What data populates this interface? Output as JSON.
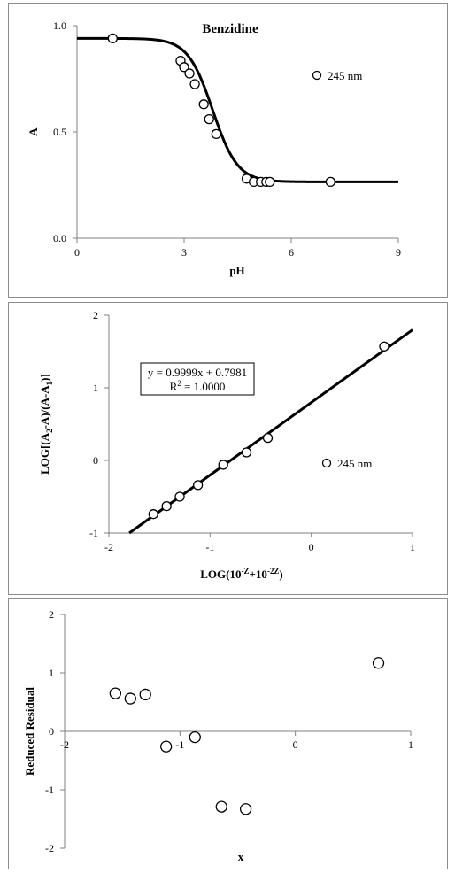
{
  "chart_data": [
    {
      "type": "scatter",
      "title": "Benzidine",
      "xlabel": "pH",
      "ylabel": "A",
      "xlim": [
        0,
        9
      ],
      "ylim": [
        0.0,
        1.0
      ],
      "xticks": [
        "0",
        "3",
        "6",
        "9"
      ],
      "yticks": [
        "0.0",
        "0.5",
        "1.0"
      ],
      "legend": "245 nm",
      "legend_position": "top-right",
      "grid": false,
      "series": [
        {
          "name": "245 nm",
          "x": [
            1.0,
            2.9,
            3.0,
            3.15,
            3.3,
            3.55,
            3.7,
            3.9,
            4.75,
            4.95,
            5.15,
            5.3,
            5.4,
            7.1
          ],
          "y": [
            0.94,
            0.835,
            0.805,
            0.775,
            0.725,
            0.63,
            0.56,
            0.49,
            0.28,
            0.265,
            0.265,
            0.265,
            0.265,
            0.265
          ]
        }
      ],
      "fit_curve": {
        "upper": 0.94,
        "lower": 0.265,
        "pKa": 3.8,
        "xrange": [
          0,
          9
        ]
      }
    },
    {
      "type": "scatter",
      "xlabel_parts": [
        "LOG(10",
        "-Z",
        "+10",
        "-2Z",
        ")"
      ],
      "ylabel_parts": [
        "LOG[(A",
        "2",
        "-A)/(A-A",
        "1",
        ")]"
      ],
      "xlim": [
        -2,
        1
      ],
      "ylim": [
        -1,
        2
      ],
      "xticks": [
        "-2",
        "-1",
        "0",
        "1"
      ],
      "yticks": [
        "-1",
        "0",
        "1",
        "2"
      ],
      "legend": "245 nm",
      "legend_position": "right",
      "grid": false,
      "equation_line1": "y = 0.9999x + 0.7981",
      "equation_line2_parts": [
        "R",
        "2",
        " = 1.0000"
      ],
      "fit_line": {
        "slope": 0.9999,
        "intercept": 0.7981,
        "xrange": [
          -1.8,
          1
        ]
      },
      "series": [
        {
          "name": "245 nm",
          "x": [
            -1.56,
            -1.43,
            -1.3,
            -1.12,
            -0.87,
            -0.64,
            -0.43,
            0.72
          ],
          "y": [
            -0.74,
            -0.63,
            -0.5,
            -0.34,
            -0.06,
            0.11,
            0.31,
            1.57
          ]
        }
      ]
    },
    {
      "type": "scatter",
      "xlabel": "x",
      "ylabel": "Reduced Residual",
      "xlim": [
        -2,
        1
      ],
      "ylim": [
        -2,
        2
      ],
      "xticks": [
        "-2",
        "-1",
        "0",
        "1"
      ],
      "yticks": [
        "-2",
        "-1",
        "0",
        "1",
        "2"
      ],
      "grid": false,
      "series": [
        {
          "x": [
            -1.56,
            -1.43,
            -1.3,
            -1.12,
            -0.87,
            -0.64,
            -0.43,
            0.72
          ],
          "y": [
            0.65,
            0.56,
            0.63,
            -0.26,
            -0.1,
            -1.29,
            -1.33,
            1.17
          ]
        }
      ]
    }
  ]
}
